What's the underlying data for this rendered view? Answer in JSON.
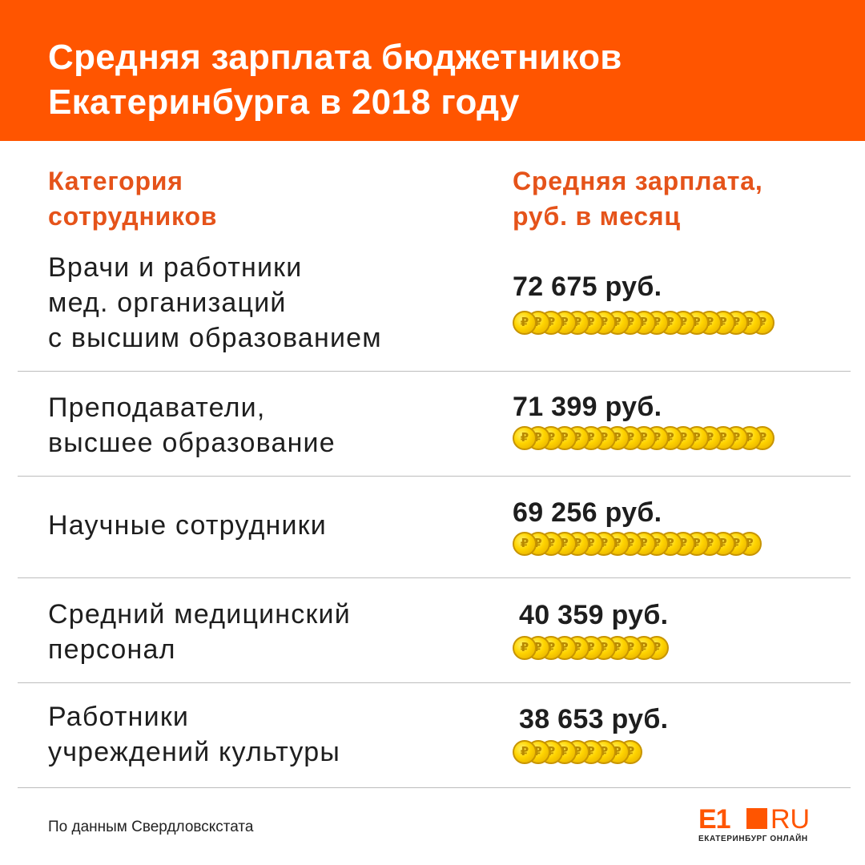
{
  "header": {
    "title": "Средняя зарплата бюджетников\nЕкатеринбурга в 2018 году"
  },
  "columns": {
    "category": "Категория\nсотрудников",
    "salary": "Средняя зарплата,\nруб. в месяц"
  },
  "chart_data": {
    "type": "table",
    "title": "Средняя зарплата бюджетников Екатеринбурга в 2018 году",
    "categories": [
      "Врачи и работники мед. организаций с высшим образованием",
      "Преподаватели, высшее образование",
      "Научные сотрудники",
      "Средний медицинский персонал",
      "Работники учреждений культуры"
    ],
    "values": [
      72675,
      71399,
      69256,
      40359,
      38653
    ],
    "unit": "руб. в месяц"
  },
  "rows": [
    {
      "label": "Врачи и работники\nмед. организаций\nс высшим образованием",
      "value_text": "72 675 руб.",
      "value": 72675
    },
    {
      "label": "Преподаватели,\nвысшее образование",
      "value_text": "71 399 руб.",
      "value": 71399
    },
    {
      "label": "Научные сотрудники",
      "value_text": "69 256 руб.",
      "value": 69256
    },
    {
      "label": "Средний медицинский\nперсонал",
      "value_text": "40 359 руб.",
      "value": 40359
    },
    {
      "label": "Работники\nучреждений культуры",
      "value_text": "38 653 руб.",
      "value": 38653
    }
  ],
  "footer": {
    "source": "По данным Свердловскстата",
    "logo_main": "E1",
    "logo_ru": "RU",
    "logo_sub": "ЕКАТЕРИНБУРГ ОНЛАЙН"
  },
  "colors": {
    "accent": "#ff5500",
    "heading": "#e5531a",
    "text": "#1e1e1e",
    "coin": "#ffd400"
  },
  "icons": {
    "coin": "ruble-coin-icon",
    "coin_glyph": "₽"
  }
}
